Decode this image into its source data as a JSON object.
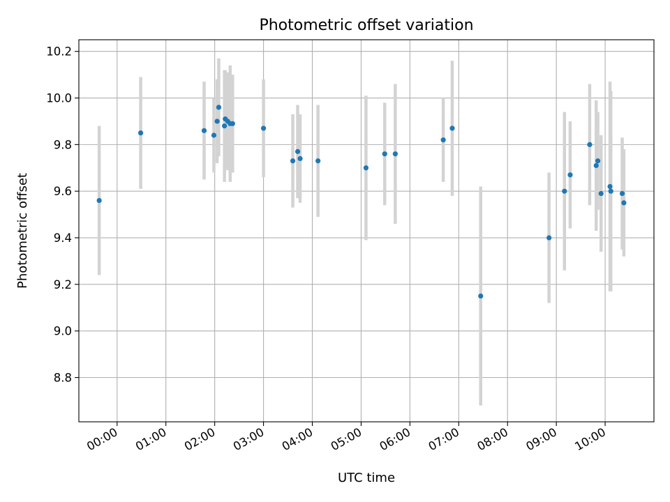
{
  "chart_data": {
    "type": "scatter",
    "title": "Photometric offset variation",
    "xlabel": "UTC time",
    "ylabel": "Photometric offset",
    "x_axis": {
      "kind": "time",
      "unit": "hours",
      "range": [
        "23:13",
        "11:00"
      ]
    },
    "ylim": [
      8.61,
      10.25
    ],
    "grid": true,
    "x_ticks": [
      {
        "t": "00:00",
        "label": "00:00"
      },
      {
        "t": "01:00",
        "label": "01:00"
      },
      {
        "t": "02:00",
        "label": "02:00"
      },
      {
        "t": "03:00",
        "label": "03:00"
      },
      {
        "t": "04:00",
        "label": "04:00"
      },
      {
        "t": "05:00",
        "label": "05:00"
      },
      {
        "t": "06:00",
        "label": "06:00"
      },
      {
        "t": "07:00",
        "label": "07:00"
      },
      {
        "t": "08:00",
        "label": "08:00"
      },
      {
        "t": "09:00",
        "label": "09:00"
      },
      {
        "t": "10:00",
        "label": "10:00"
      }
    ],
    "y_ticks": [
      {
        "v": 8.8,
        "label": "8.8"
      },
      {
        "v": 9.0,
        "label": "9.0"
      },
      {
        "v": 9.2,
        "label": "9.2"
      },
      {
        "v": 9.4,
        "label": "9.4"
      },
      {
        "v": 9.6,
        "label": "9.6"
      },
      {
        "v": 9.8,
        "label": "9.8"
      },
      {
        "v": 10.0,
        "label": "10.0"
      },
      {
        "v": 10.2,
        "label": "10.2"
      }
    ],
    "colors": {
      "points": "#1f77b4",
      "error_bars": "#d3d3d3",
      "grid": "#b0b0b0"
    },
    "points": [
      {
        "t": "23:38",
        "y": 9.56,
        "err": 0.32
      },
      {
        "t": "00:29",
        "y": 9.85,
        "err": 0.24
      },
      {
        "t": "01:47",
        "y": 9.86,
        "err": 0.21
      },
      {
        "t": "01:59",
        "y": 9.84,
        "err": 0.16
      },
      {
        "t": "02:03",
        "y": 9.9,
        "err": 0.18
      },
      {
        "t": "02:05",
        "y": 9.96,
        "err": 0.21
      },
      {
        "t": "02:12",
        "y": 9.88,
        "err": 0.24
      },
      {
        "t": "02:13",
        "y": 9.91,
        "err": 0.21
      },
      {
        "t": "02:16",
        "y": 9.9,
        "err": 0.21
      },
      {
        "t": "02:19",
        "y": 9.89,
        "err": 0.25
      },
      {
        "t": "02:22",
        "y": 9.89,
        "err": 0.21
      },
      {
        "t": "03:00",
        "y": 9.87,
        "err": 0.21
      },
      {
        "t": "03:36",
        "y": 9.73,
        "err": 0.2
      },
      {
        "t": "03:42",
        "y": 9.77,
        "err": 0.2
      },
      {
        "t": "03:45",
        "y": 9.74,
        "err": 0.19
      },
      {
        "t": "04:07",
        "y": 9.73,
        "err": 0.24
      },
      {
        "t": "05:06",
        "y": 9.7,
        "err": 0.31
      },
      {
        "t": "05:29",
        "y": 9.76,
        "err": 0.22
      },
      {
        "t": "05:42",
        "y": 9.76,
        "err": 0.3
      },
      {
        "t": "06:41",
        "y": 9.82,
        "err": 0.18
      },
      {
        "t": "06:52",
        "y": 9.87,
        "err": 0.29
      },
      {
        "t": "07:27",
        "y": 9.15,
        "err": 0.47
      },
      {
        "t": "08:51",
        "y": 9.4,
        "err": 0.28
      },
      {
        "t": "09:10",
        "y": 9.6,
        "err": 0.34
      },
      {
        "t": "09:17",
        "y": 9.67,
        "err": 0.23
      },
      {
        "t": "09:41",
        "y": 9.8,
        "err": 0.26
      },
      {
        "t": "09:49",
        "y": 9.71,
        "err": 0.28
      },
      {
        "t": "09:51",
        "y": 9.73,
        "err": 0.21
      },
      {
        "t": "09:55",
        "y": 9.59,
        "err": 0.25
      },
      {
        "t": "10:06",
        "y": 9.62,
        "err": 0.45
      },
      {
        "t": "10:07",
        "y": 9.6,
        "err": 0.43
      },
      {
        "t": "10:21",
        "y": 9.59,
        "err": 0.24
      },
      {
        "t": "10:23",
        "y": 9.55,
        "err": 0.23
      }
    ]
  }
}
